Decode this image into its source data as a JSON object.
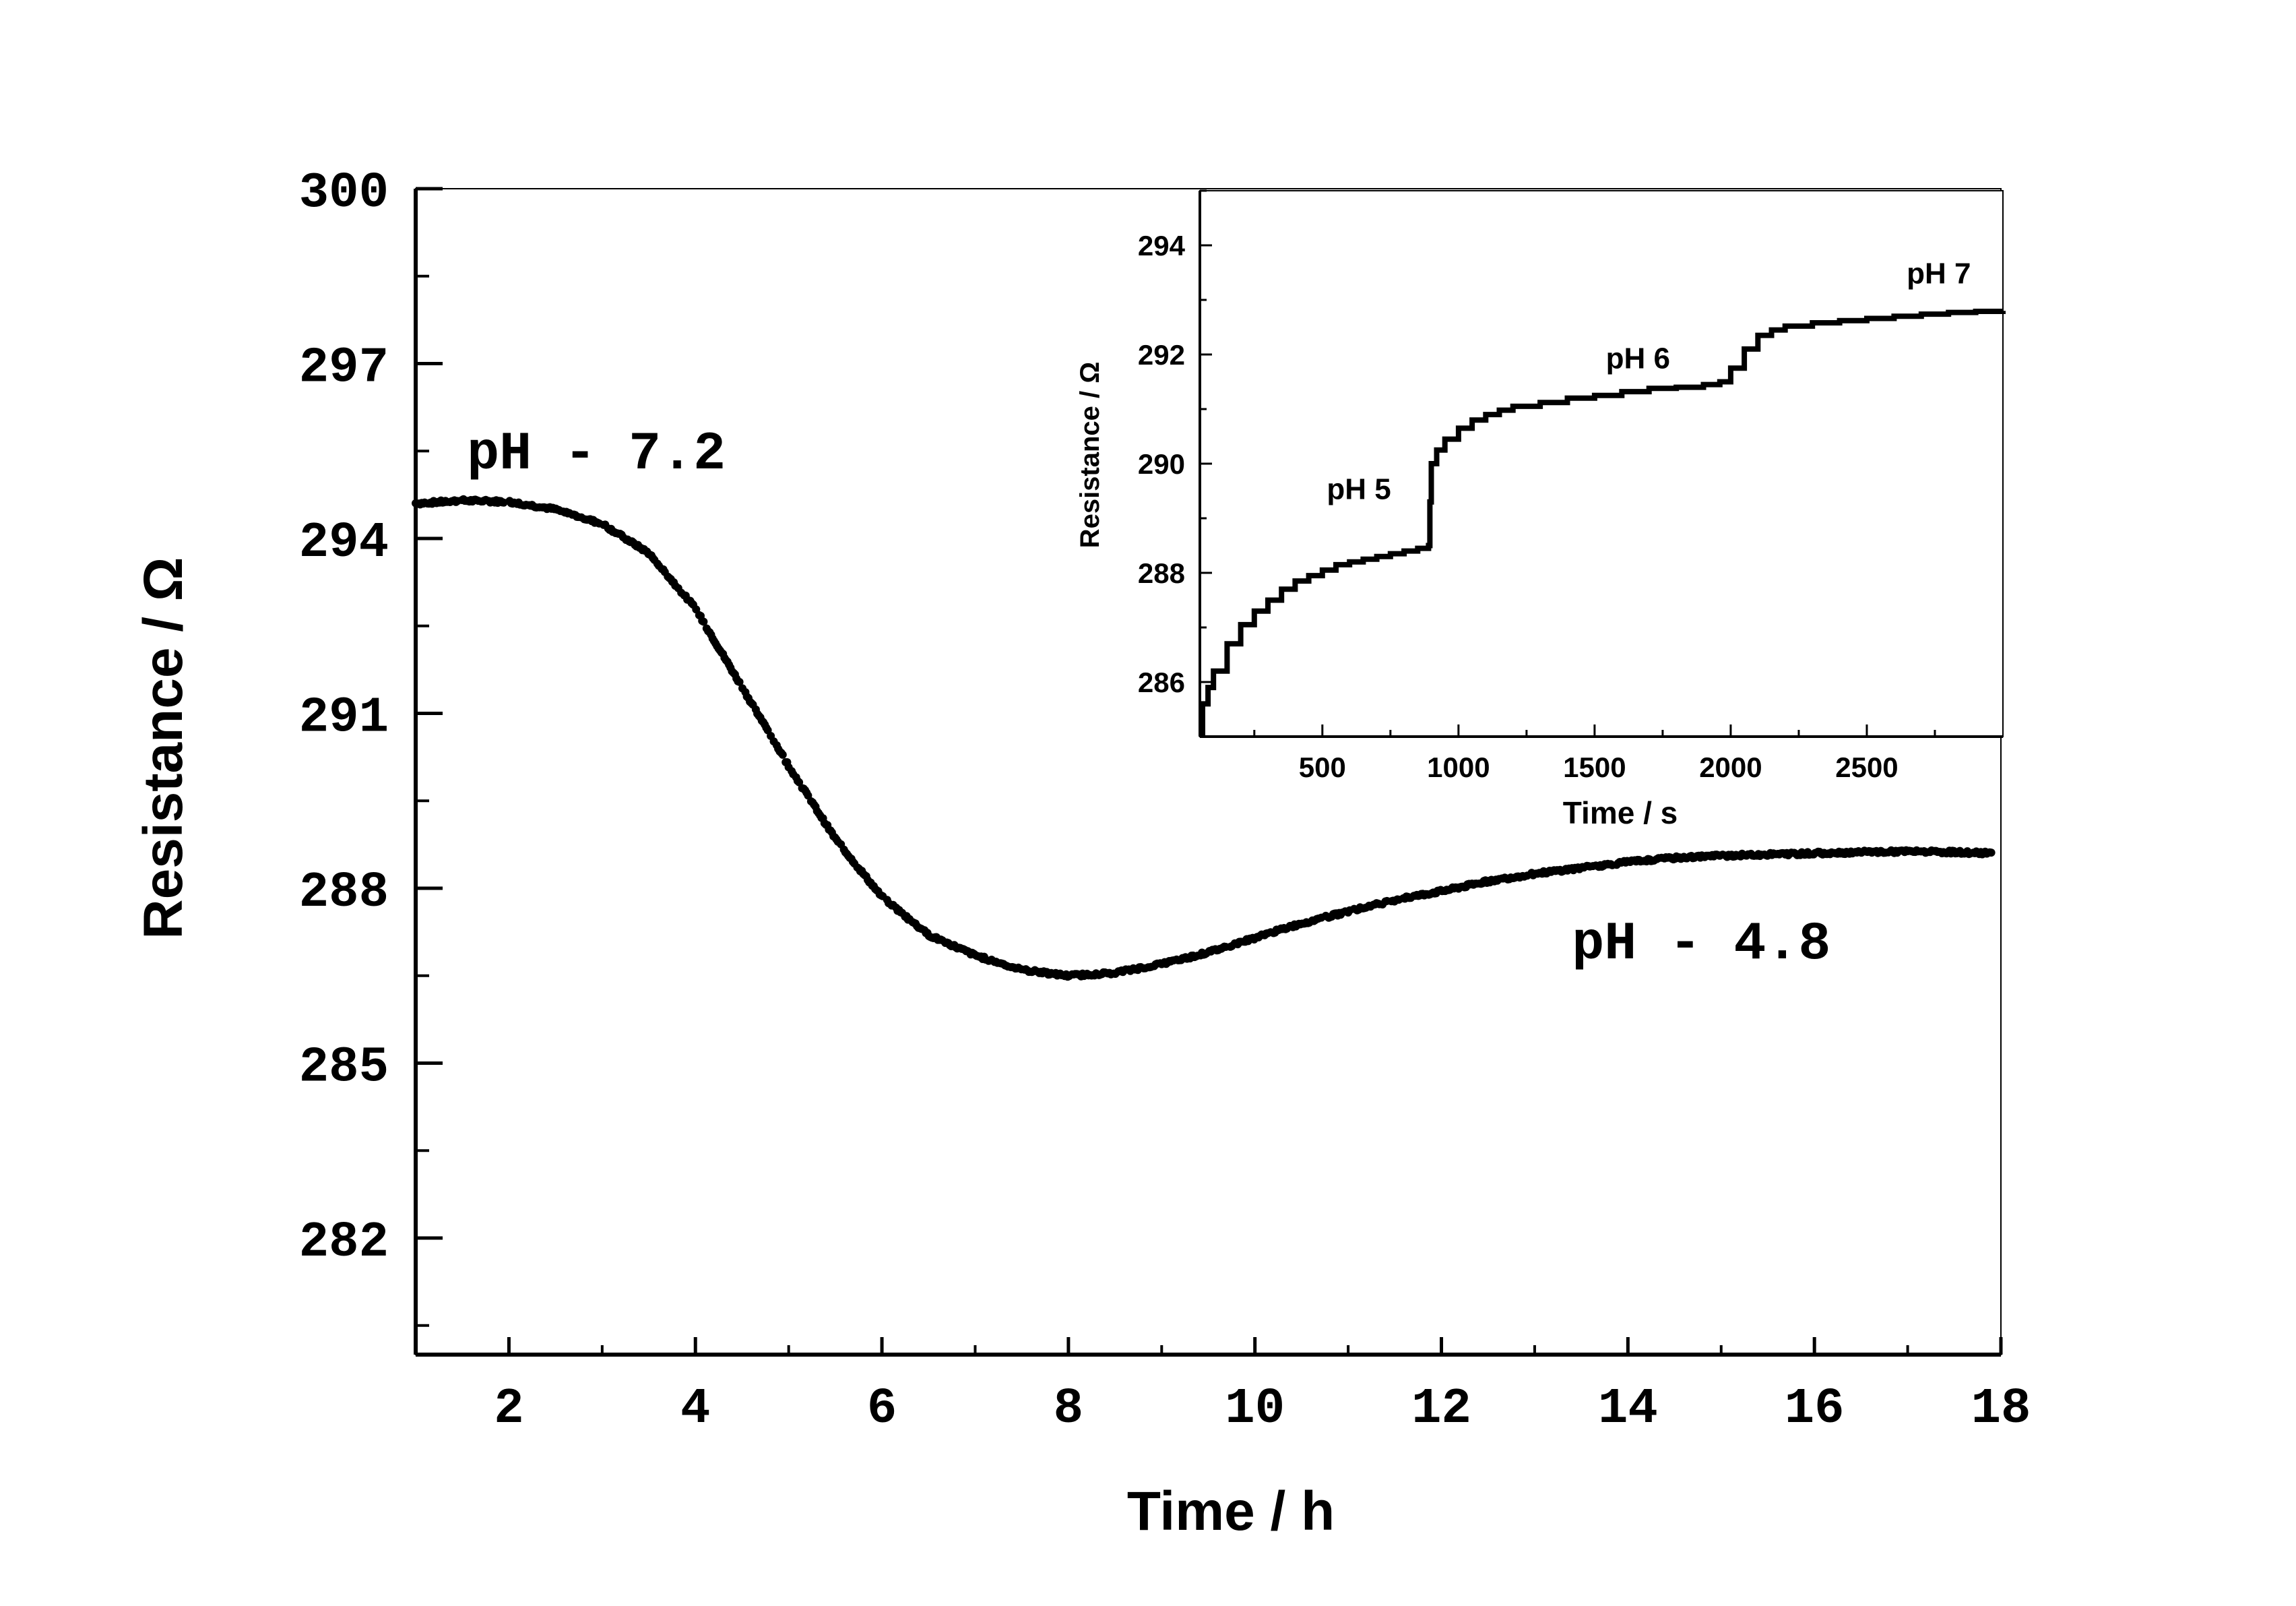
{
  "chart_data": [
    {
      "type": "scatter",
      "role": "main",
      "xlabel": "Time / h",
      "ylabel": "Resistance / Ω",
      "xlim": [
        1,
        18
      ],
      "ylim": [
        280,
        300
      ],
      "xticks": [
        2,
        4,
        6,
        8,
        10,
        12,
        14,
        16,
        18
      ],
      "xtick_labels": [
        "2",
        "4",
        "6",
        "8",
        "10",
        "12",
        "14",
        "16",
        "18"
      ],
      "yticks": [
        282,
        285,
        288,
        291,
        294,
        297,
        300
      ],
      "ytick_labels": [
        "282",
        "285",
        "288",
        "291",
        "294",
        "297",
        "300"
      ],
      "annotations": [
        {
          "text": "pH - 7.2",
          "x": 1.55,
          "y": 295.2
        },
        {
          "text": "pH - 4.8",
          "x": 13.4,
          "y": 286.8
        }
      ],
      "series": [
        {
          "name": "resistance",
          "color": "#000000",
          "points": [
            [
              1.0,
              294.6
            ],
            [
              1.5,
              294.65
            ],
            [
              2.0,
              294.63
            ],
            [
              2.5,
              294.5
            ],
            [
              3.0,
              294.25
            ],
            [
              3.5,
              293.75
            ],
            [
              4.0,
              292.8
            ],
            [
              4.5,
              291.45
            ],
            [
              5.0,
              290.1
            ],
            [
              5.5,
              288.85
            ],
            [
              6.0,
              287.85
            ],
            [
              6.5,
              287.2
            ],
            [
              7.0,
              286.85
            ],
            [
              7.5,
              286.6
            ],
            [
              8.0,
              286.5
            ],
            [
              8.5,
              286.55
            ],
            [
              9.0,
              286.7
            ],
            [
              9.5,
              286.9
            ],
            [
              10.0,
              287.15
            ],
            [
              10.5,
              287.4
            ],
            [
              11.0,
              287.6
            ],
            [
              11.5,
              287.8
            ],
            [
              12.0,
              287.95
            ],
            [
              12.5,
              288.12
            ],
            [
              13.0,
              288.25
            ],
            [
              13.5,
              288.35
            ],
            [
              14.0,
              288.45
            ],
            [
              14.5,
              288.52
            ],
            [
              15.0,
              288.56
            ],
            [
              15.5,
              288.58
            ],
            [
              16.0,
              288.6
            ],
            [
              16.5,
              288.62
            ],
            [
              17.0,
              288.63
            ],
            [
              17.5,
              288.62
            ],
            [
              17.9,
              288.6
            ]
          ]
        }
      ]
    },
    {
      "type": "line",
      "role": "inset",
      "xlabel": "Time / s",
      "ylabel": "Resistance / Ω",
      "xlim": [
        50,
        3000
      ],
      "ylim": [
        285,
        295
      ],
      "xticks": [
        500,
        1000,
        1500,
        2000,
        2500
      ],
      "xtick_labels": [
        "500",
        "1000",
        "1500",
        "2000",
        "2500"
      ],
      "yticks": [
        286,
        288,
        290,
        292,
        294
      ],
      "ytick_labels": [
        "286",
        "288",
        "290",
        "292",
        "294"
      ],
      "annotations": [
        {
          "text": "pH 5",
          "x": 640,
          "y": 289.35
        },
        {
          "text": "pH 6",
          "x": 1665,
          "y": 291.75
        },
        {
          "text": "pH 7",
          "x": 2770,
          "y": 293.3
        }
      ],
      "series": [
        {
          "name": "resistance",
          "color": "#000000",
          "points": [
            [
              50,
              285.05
            ],
            [
              60,
              285.6
            ],
            [
              80,
              285.9
            ],
            [
              100,
              286.2
            ],
            [
              150,
              286.7
            ],
            [
              200,
              287.05
            ],
            [
              250,
              287.3
            ],
            [
              300,
              287.5
            ],
            [
              350,
              287.7
            ],
            [
              400,
              287.85
            ],
            [
              450,
              287.95
            ],
            [
              500,
              288.05
            ],
            [
              550,
              288.15
            ],
            [
              600,
              288.2
            ],
            [
              650,
              288.25
            ],
            [
              700,
              288.3
            ],
            [
              750,
              288.35
            ],
            [
              800,
              288.4
            ],
            [
              850,
              288.45
            ],
            [
              890,
              288.5
            ],
            [
              895,
              289.3
            ],
            [
              900,
              290.0
            ],
            [
              920,
              290.25
            ],
            [
              950,
              290.45
            ],
            [
              1000,
              290.65
            ],
            [
              1050,
              290.8
            ],
            [
              1100,
              290.9
            ],
            [
              1150,
              290.98
            ],
            [
              1200,
              291.05
            ],
            [
              1300,
              291.12
            ],
            [
              1400,
              291.2
            ],
            [
              1500,
              291.25
            ],
            [
              1600,
              291.32
            ],
            [
              1700,
              291.38
            ],
            [
              1800,
              291.4
            ],
            [
              1900,
              291.45
            ],
            [
              1960,
              291.5
            ],
            [
              2000,
              291.75
            ],
            [
              2050,
              292.1
            ],
            [
              2100,
              292.35
            ],
            [
              2150,
              292.45
            ],
            [
              2200,
              292.52
            ],
            [
              2300,
              292.58
            ],
            [
              2400,
              292.62
            ],
            [
              2500,
              292.66
            ],
            [
              2600,
              292.7
            ],
            [
              2700,
              292.74
            ],
            [
              2800,
              292.77
            ],
            [
              2900,
              292.79
            ],
            [
              3000,
              292.8
            ]
          ]
        }
      ]
    }
  ]
}
